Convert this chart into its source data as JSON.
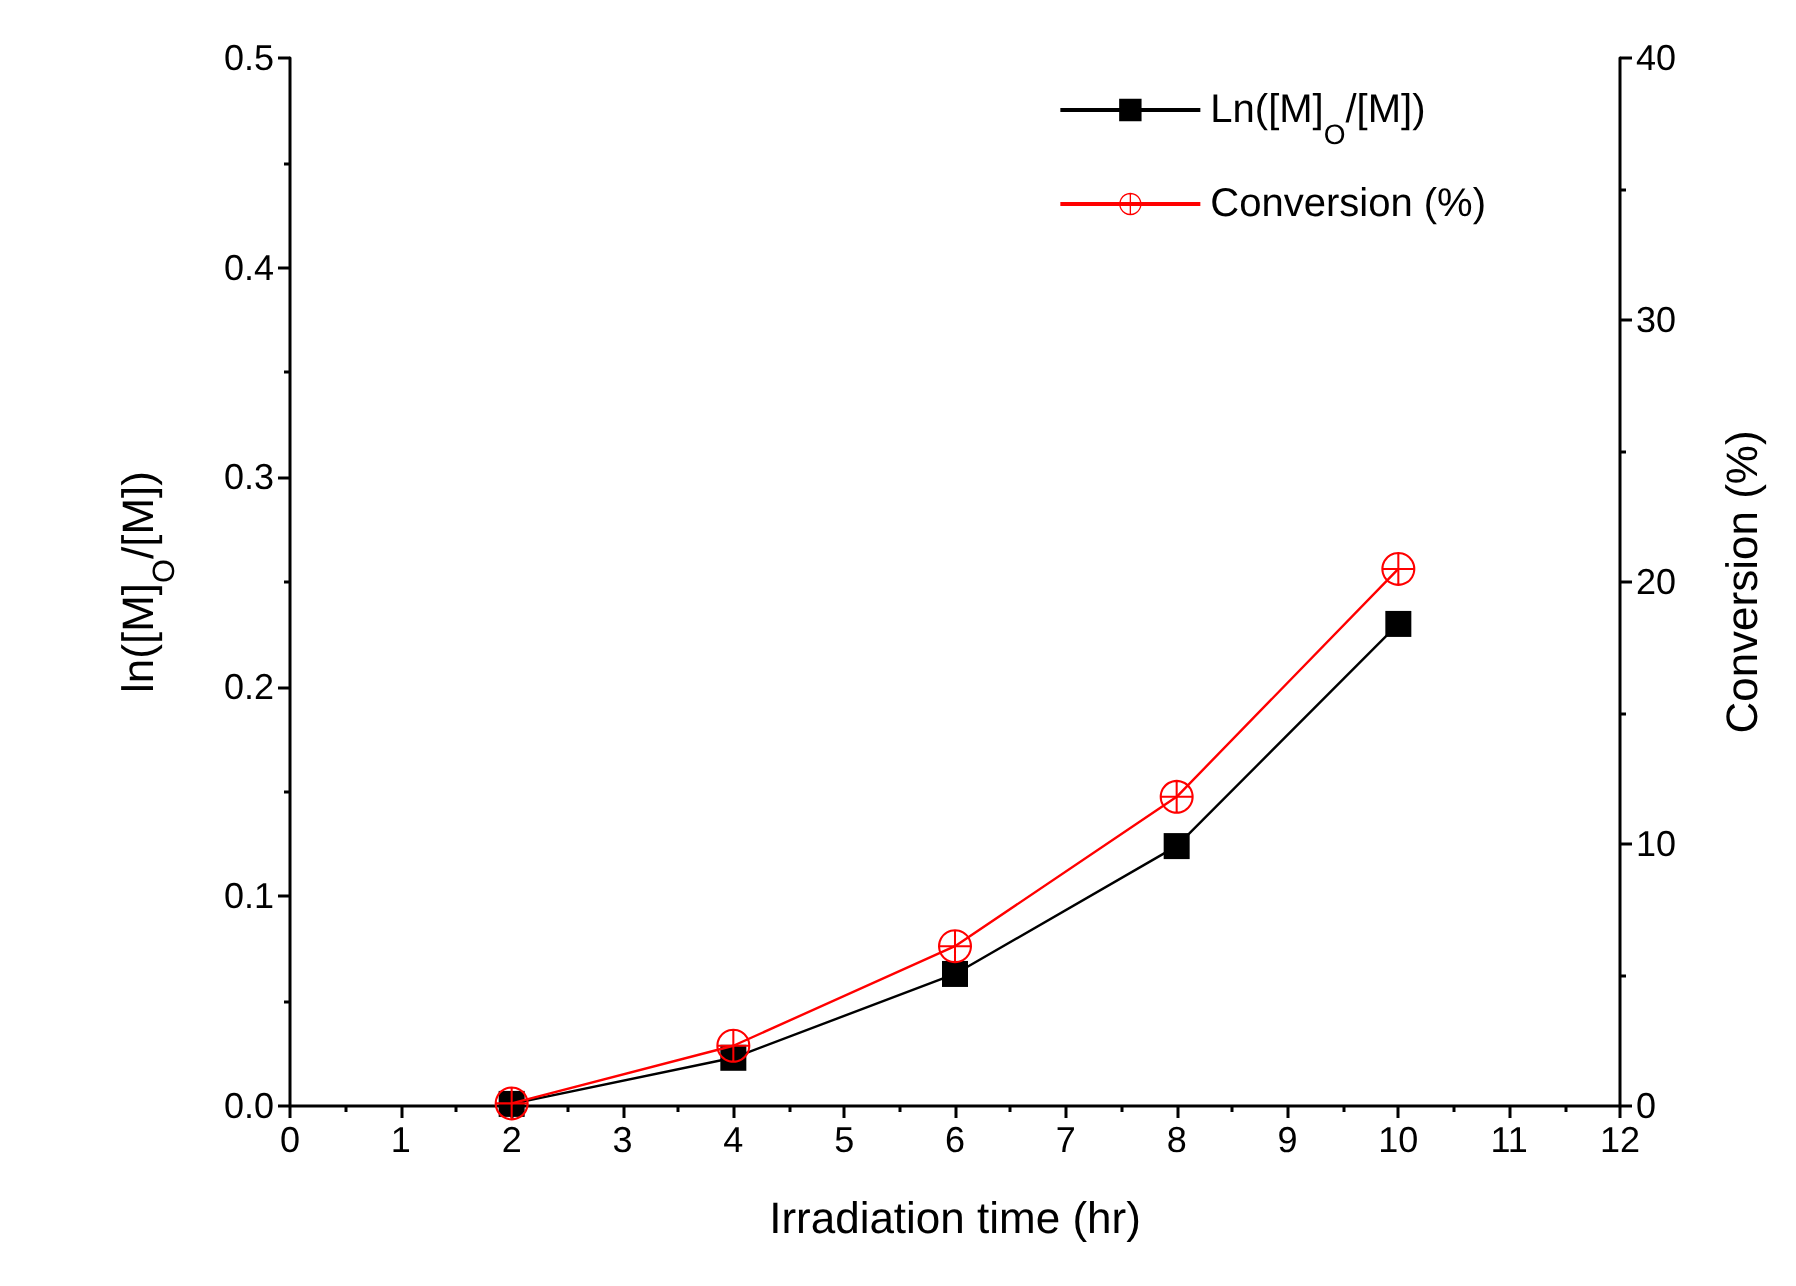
{
  "chart_data": {
    "type": "line",
    "xlabel": "Irradiation time (hr)",
    "ylabel": "ln([M]$_{O}$/[M])",
    "y2label": "Conversion (%)",
    "x": [
      2,
      4,
      6,
      8,
      10
    ],
    "series": [
      {
        "name": "Ln([M]$_{O}$/[M])",
        "color": "#000000",
        "marker": "square",
        "values": [
          0.001,
          0.023,
          0.063,
          0.124,
          0.23
        ]
      },
      {
        "name": "Conversion (%)",
        "color": "#ff0000",
        "marker": "circle",
        "axis": "y2",
        "values": [
          0.1,
          2.3,
          6.1,
          11.8,
          20.5
        ]
      }
    ],
    "xlim": [
      0,
      12
    ],
    "xticks": [
      0,
      1,
      2,
      3,
      4,
      5,
      6,
      7,
      8,
      9,
      10,
      11,
      12
    ],
    "ylim": [
      0,
      0.5
    ],
    "yticks": [
      {
        "value": 0,
        "label": "0.0"
      },
      {
        "value": 0.1,
        "label": "0.1"
      },
      {
        "value": 0.2,
        "label": "0.2"
      },
      {
        "value": 0.3,
        "label": "0.3"
      },
      {
        "value": 0.4,
        "label": "0.4"
      },
      {
        "value": 0.5,
        "label": "0.5"
      }
    ],
    "y2lim": [
      0,
      40
    ],
    "y2ticks": [
      0,
      10,
      20,
      30,
      40
    ],
    "grid": false,
    "legend": "top right",
    "line_style": "solid"
  }
}
